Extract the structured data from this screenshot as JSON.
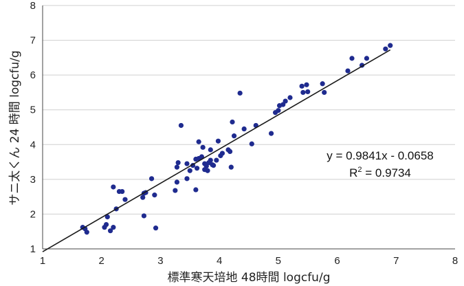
{
  "chart_data": {
    "type": "scatter",
    "title": "",
    "xlabel": "標準寒天培地 48時間 logcfu/g",
    "ylabel": "サニ太くん 24 時間 logcfu/g",
    "xlim": [
      1,
      8
    ],
    "ylim": [
      1,
      8
    ],
    "x_ticks": [
      "1",
      "2",
      "3",
      "4",
      "5",
      "6",
      "7",
      "8"
    ],
    "y_ticks": [
      "1",
      "2",
      "3",
      "4",
      "5",
      "6",
      "7",
      "8"
    ],
    "grid": "horizontal",
    "point_color": "#1f2b8f",
    "line_color": "#1a1a1a",
    "trendline": {
      "slope": 0.9841,
      "intercept": -0.0658,
      "equation": "y = 0.9841x - 0.0658",
      "r2_label": "R",
      "r2_exp": "2",
      "r2_value": " = 0.9734"
    },
    "points": [
      [
        1.68,
        1.62
      ],
      [
        1.72,
        1.58
      ],
      [
        1.75,
        1.48
      ],
      [
        2.05,
        1.62
      ],
      [
        2.08,
        1.7
      ],
      [
        2.1,
        1.92
      ],
      [
        2.15,
        1.52
      ],
      [
        2.2,
        1.62
      ],
      [
        2.2,
        2.78
      ],
      [
        2.25,
        2.15
      ],
      [
        2.3,
        2.65
      ],
      [
        2.35,
        2.65
      ],
      [
        2.4,
        2.42
      ],
      [
        2.7,
        2.48
      ],
      [
        2.72,
        2.6
      ],
      [
        2.75,
        2.62
      ],
      [
        2.72,
        1.95
      ],
      [
        2.85,
        3.02
      ],
      [
        2.9,
        2.55
      ],
      [
        2.92,
        1.6
      ],
      [
        3.25,
        2.68
      ],
      [
        3.28,
        2.92
      ],
      [
        3.28,
        3.35
      ],
      [
        3.3,
        3.48
      ],
      [
        3.35,
        4.55
      ],
      [
        3.45,
        3.02
      ],
      [
        3.45,
        3.45
      ],
      [
        3.5,
        3.25
      ],
      [
        3.55,
        3.4
      ],
      [
        3.6,
        2.7
      ],
      [
        3.6,
        3.58
      ],
      [
        3.62,
        3.32
      ],
      [
        3.65,
        3.6
      ],
      [
        3.65,
        4.08
      ],
      [
        3.7,
        3.65
      ],
      [
        3.72,
        3.92
      ],
      [
        3.75,
        3.28
      ],
      [
        3.75,
        3.45
      ],
      [
        3.78,
        3.38
      ],
      [
        3.8,
        3.25
      ],
      [
        3.82,
        3.48
      ],
      [
        3.85,
        3.55
      ],
      [
        3.85,
        3.85
      ],
      [
        3.88,
        3.42
      ],
      [
        3.9,
        3.4
      ],
      [
        3.95,
        3.55
      ],
      [
        3.98,
        4.1
      ],
      [
        4.02,
        3.68
      ],
      [
        4.05,
        3.75
      ],
      [
        4.15,
        3.85
      ],
      [
        4.18,
        3.8
      ],
      [
        4.2,
        3.35
      ],
      [
        4.22,
        4.65
      ],
      [
        4.25,
        4.25
      ],
      [
        4.35,
        5.48
      ],
      [
        4.42,
        4.45
      ],
      [
        4.55,
        4.02
      ],
      [
        4.62,
        4.55
      ],
      [
        4.88,
        4.32
      ],
      [
        4.95,
        4.92
      ],
      [
        5.0,
        4.98
      ],
      [
        5.02,
        5.12
      ],
      [
        5.08,
        5.15
      ],
      [
        5.12,
        5.25
      ],
      [
        5.2,
        5.35
      ],
      [
        5.4,
        5.68
      ],
      [
        5.42,
        5.5
      ],
      [
        5.48,
        5.72
      ],
      [
        5.5,
        5.52
      ],
      [
        5.75,
        5.75
      ],
      [
        5.78,
        5.5
      ],
      [
        6.18,
        6.12
      ],
      [
        6.25,
        6.48
      ],
      [
        6.42,
        6.28
      ],
      [
        6.5,
        6.48
      ],
      [
        6.82,
        6.75
      ],
      [
        6.9,
        6.85
      ]
    ]
  }
}
